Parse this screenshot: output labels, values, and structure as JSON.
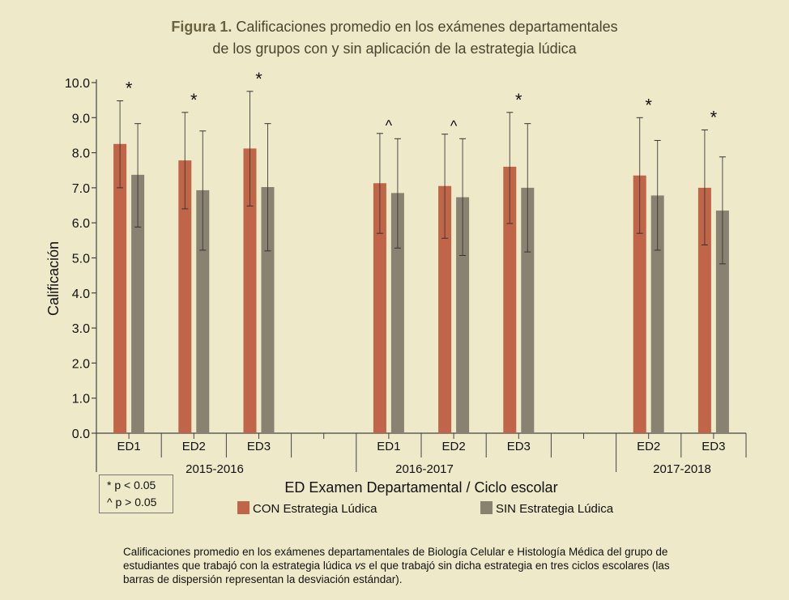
{
  "title": {
    "bold": "Figura 1.",
    "line1": "Calificaciones promedio en los exámenes departamentales",
    "line2": "de los grupos con y sin aplicación de la estrategia lúdica"
  },
  "significance": {
    "star": "* p < 0.05",
    "caret": "^ p > 0.05"
  },
  "caption": {
    "part1": "Calificaciones promedio en los exámenes departamentales de Biología Celular e Histología Médica del grupo de estudiantes que trabajó con la estrategia lúdica ",
    "vs": "vs",
    "part2": " el que trabajó sin dicha estrategia en tres ciclos escolares (las barras de dispersión representan la desviación estándar)."
  },
  "chart_data": {
    "type": "bar",
    "ylabel": "Calificación",
    "xlabel": "ED Examen Departamental / Ciclo escolar",
    "ylim": [
      0,
      10
    ],
    "yticks": [
      "0.0",
      "1.0",
      "2.0",
      "3.0",
      "4.0",
      "5.0",
      "6.0",
      "7.0",
      "8.0",
      "9.0",
      "10.0"
    ],
    "colors": {
      "CON": "#C06547",
      "SIN": "#8A8271"
    },
    "legend": [
      {
        "key": "CON",
        "label": "CON Estrategia Lúdica"
      },
      {
        "key": "SIN",
        "label": "SIN Estrategia Lúdica"
      }
    ],
    "groups": [
      {
        "cycle": "2015-2016",
        "exams": [
          {
            "label": "ED1",
            "mark": "*",
            "CON": {
              "mean": 8.25,
              "low": 7.0,
              "high": 9.48
            },
            "SIN": {
              "mean": 7.37,
              "low": 5.88,
              "high": 8.83
            }
          },
          {
            "label": "ED2",
            "mark": "*",
            "CON": {
              "mean": 7.78,
              "low": 6.4,
              "high": 9.15
            },
            "SIN": {
              "mean": 6.93,
              "low": 5.22,
              "high": 8.62
            }
          },
          {
            "label": "ED3",
            "mark": "*",
            "CON": {
              "mean": 8.12,
              "low": 6.48,
              "high": 9.75
            },
            "SIN": {
              "mean": 7.02,
              "low": 5.2,
              "high": 8.83
            }
          }
        ]
      },
      {
        "cycle": "2016-2017",
        "exams": [
          {
            "label": "ED1",
            "mark": "^",
            "CON": {
              "mean": 7.13,
              "low": 5.7,
              "high": 8.55
            },
            "SIN": {
              "mean": 6.85,
              "low": 5.28,
              "high": 8.4
            }
          },
          {
            "label": "ED2",
            "mark": "^",
            "CON": {
              "mean": 7.05,
              "low": 5.56,
              "high": 8.53
            },
            "SIN": {
              "mean": 6.73,
              "low": 5.07,
              "high": 8.4
            }
          },
          {
            "label": "ED3",
            "mark": "*",
            "CON": {
              "mean": 7.6,
              "low": 5.98,
              "high": 9.15
            },
            "SIN": {
              "mean": 7.0,
              "low": 5.17,
              "high": 8.83
            }
          }
        ]
      },
      {
        "cycle": "2017-2018",
        "exams": [
          {
            "label": "ED2",
            "mark": "*",
            "CON": {
              "mean": 7.35,
              "low": 5.7,
              "high": 9.0
            },
            "SIN": {
              "mean": 6.78,
              "low": 5.22,
              "high": 8.35
            }
          },
          {
            "label": "ED3",
            "mark": "*",
            "CON": {
              "mean": 7.0,
              "low": 5.37,
              "high": 8.65
            },
            "SIN": {
              "mean": 6.35,
              "low": 4.83,
              "high": 7.88
            }
          }
        ]
      }
    ]
  }
}
